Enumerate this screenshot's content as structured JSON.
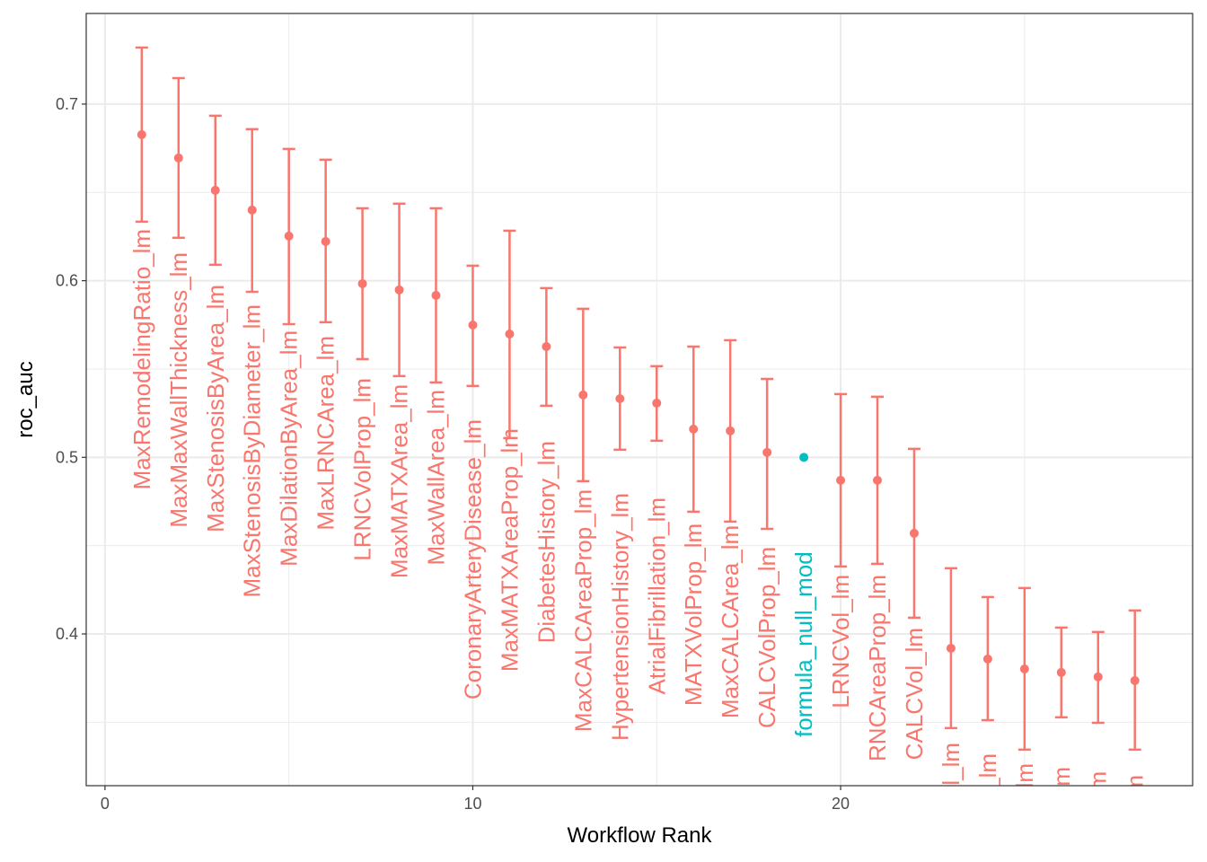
{
  "chart_data": {
    "type": "errorbar",
    "x_label": "Workflow Rank",
    "y_label": "roc_auc",
    "x": [
      1,
      2,
      3,
      4,
      5,
      6,
      7,
      8,
      9,
      10,
      11,
      12,
      13,
      14,
      15,
      16,
      17,
      18,
      19,
      20,
      21,
      22,
      23,
      24,
      25,
      26,
      27,
      28
    ],
    "values": [
      0.6827,
      0.6695,
      0.6512,
      0.64,
      0.6253,
      0.6222,
      0.5983,
      0.5948,
      0.5917,
      0.5749,
      0.5698,
      0.5627,
      0.5353,
      0.5332,
      0.5307,
      0.516,
      0.515,
      0.5028,
      0.5,
      0.487,
      0.487,
      0.457,
      0.3919,
      0.3858,
      0.3802,
      0.3782,
      0.3757,
      0.3736
    ],
    "lower": [
      0.6334,
      0.6243,
      0.609,
      0.5937,
      0.5754,
      0.5765,
      0.5556,
      0.546,
      0.5424,
      0.5404,
      0.5109,
      0.5292,
      0.4865,
      0.5043,
      0.5094,
      0.4692,
      0.4636,
      0.4595,
      null,
      0.4382,
      0.4397,
      0.4092,
      0.3467,
      0.3512,
      0.3345,
      0.3528,
      0.3497,
      0.3345
    ],
    "upper": [
      0.732,
      0.7147,
      0.6934,
      0.6858,
      0.6746,
      0.6685,
      0.641,
      0.6436,
      0.641,
      0.6085,
      0.6283,
      0.5958,
      0.5841,
      0.5622,
      0.5516,
      0.5627,
      0.5663,
      0.5444,
      null,
      0.5358,
      0.5343,
      0.5048,
      0.4372,
      0.4209,
      0.426,
      0.4036,
      0.4011,
      0.4133
    ],
    "labels": [
      "MaxRemodelingRatio_lm",
      "MaxMaxWallThickness_lm",
      "MaxStenosisByArea_lm",
      "MaxStenosisByDiameter_lm",
      "MaxDilationByArea_lm",
      "MaxLRNCArea_lm",
      "LRNCVolProp_lm",
      "MaxMATXArea_lm",
      "MaxWallArea_lm",
      "CoronaryArteryDisease_lm",
      "MaxMATXAreaProp_lm",
      "DiabetesHistory_lm",
      "MaxCALCAreaProp_lm",
      "HypertensionHistory_lm",
      "AtrialFibrillation_lm",
      "MATXVolProp_lm",
      "MaxCALCArea_lm",
      "CALCVolProp_lm",
      "formula_null_mod",
      "LRNCVol_lm",
      "RNCAreaProp_lm",
      "CALCVol_lm",
      "Vol_lm",
      "y_lm",
      "l_lm",
      "_lm",
      "lm",
      "lm"
    ],
    "colors": [
      "#F8766D",
      "#F8766D",
      "#F8766D",
      "#F8766D",
      "#F8766D",
      "#F8766D",
      "#F8766D",
      "#F8766D",
      "#F8766D",
      "#F8766D",
      "#F8766D",
      "#F8766D",
      "#F8766D",
      "#F8766D",
      "#F8766D",
      "#F8766D",
      "#F8766D",
      "#F8766D",
      "#00BFC4",
      "#F8766D",
      "#F8766D",
      "#F8766D",
      "#F8766D",
      "#F8766D",
      "#F8766D",
      "#F8766D",
      "#F8766D",
      "#F8766D"
    ],
    "xlim": [
      -0.51,
      29.57
    ],
    "ylim": [
      0.3141,
      0.7513
    ],
    "xticks": [
      0,
      10,
      20
    ],
    "yticks": [
      0.4,
      0.5,
      0.6,
      0.7
    ],
    "minor_xticks": [
      5,
      15,
      25
    ],
    "minor_yticks": [
      0.35,
      0.45,
      0.55,
      0.65
    ],
    "grid": true
  }
}
